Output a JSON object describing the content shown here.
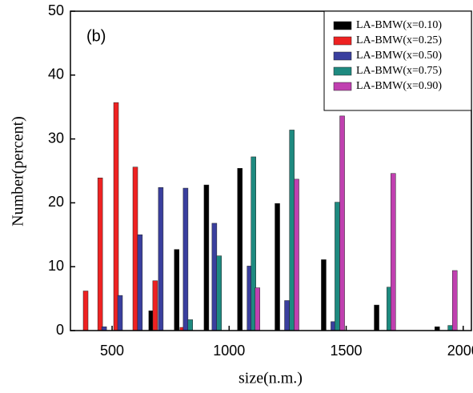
{
  "chart_data": {
    "type": "bar",
    "annotation": "(b)",
    "xlabel": "size(n.m.)",
    "ylabel": "Number(percent)",
    "xlim": [
      322,
      2035
    ],
    "ylim": [
      0,
      50
    ],
    "xticks": [
      500,
      1000,
      1500,
      2000
    ],
    "yticks": [
      0,
      10,
      20,
      30,
      40,
      50
    ],
    "legend": "upper right",
    "series": [
      {
        "name": "LA-BMW(x=0.10)",
        "color": "#000000",
        "x": [
          667,
          776,
          903,
          1046,
          1206,
          1404,
          1630,
          1889
        ],
        "values": [
          3.1,
          12.7,
          22.8,
          25.4,
          19.9,
          11.1,
          4.0,
          0.6
        ]
      },
      {
        "name": "LA-BMW(x=0.25)",
        "color": "#ee2222",
        "x": [
          387,
          449,
          517,
          599,
          684,
          800
        ],
        "values": [
          6.2,
          23.9,
          35.7,
          25.6,
          7.8,
          0.5
        ]
      },
      {
        "name": "LA-BMW(x=0.50)",
        "color": "#3a3f9e",
        "x": [
          466,
          534,
          619,
          708,
          814,
          937,
          1087,
          1247,
          1445
        ],
        "values": [
          0.6,
          5.5,
          15.0,
          22.4,
          22.3,
          16.8,
          10.1,
          4.7,
          1.4
        ]
      },
      {
        "name": "LA-BMW(x=0.75)",
        "color": "#1e8a80",
        "x": [
          834,
          957,
          1104,
          1268,
          1462,
          1684,
          1945
        ],
        "values": [
          1.7,
          11.7,
          27.2,
          31.4,
          20.1,
          6.8,
          0.8
        ]
      },
      {
        "name": "LA-BMW(x=0.90)",
        "color": "#c040b0",
        "x": [
          1121,
          1288,
          1483,
          1701,
          1964
        ],
        "values": [
          6.7,
          23.7,
          33.6,
          24.6,
          9.4
        ]
      }
    ]
  }
}
